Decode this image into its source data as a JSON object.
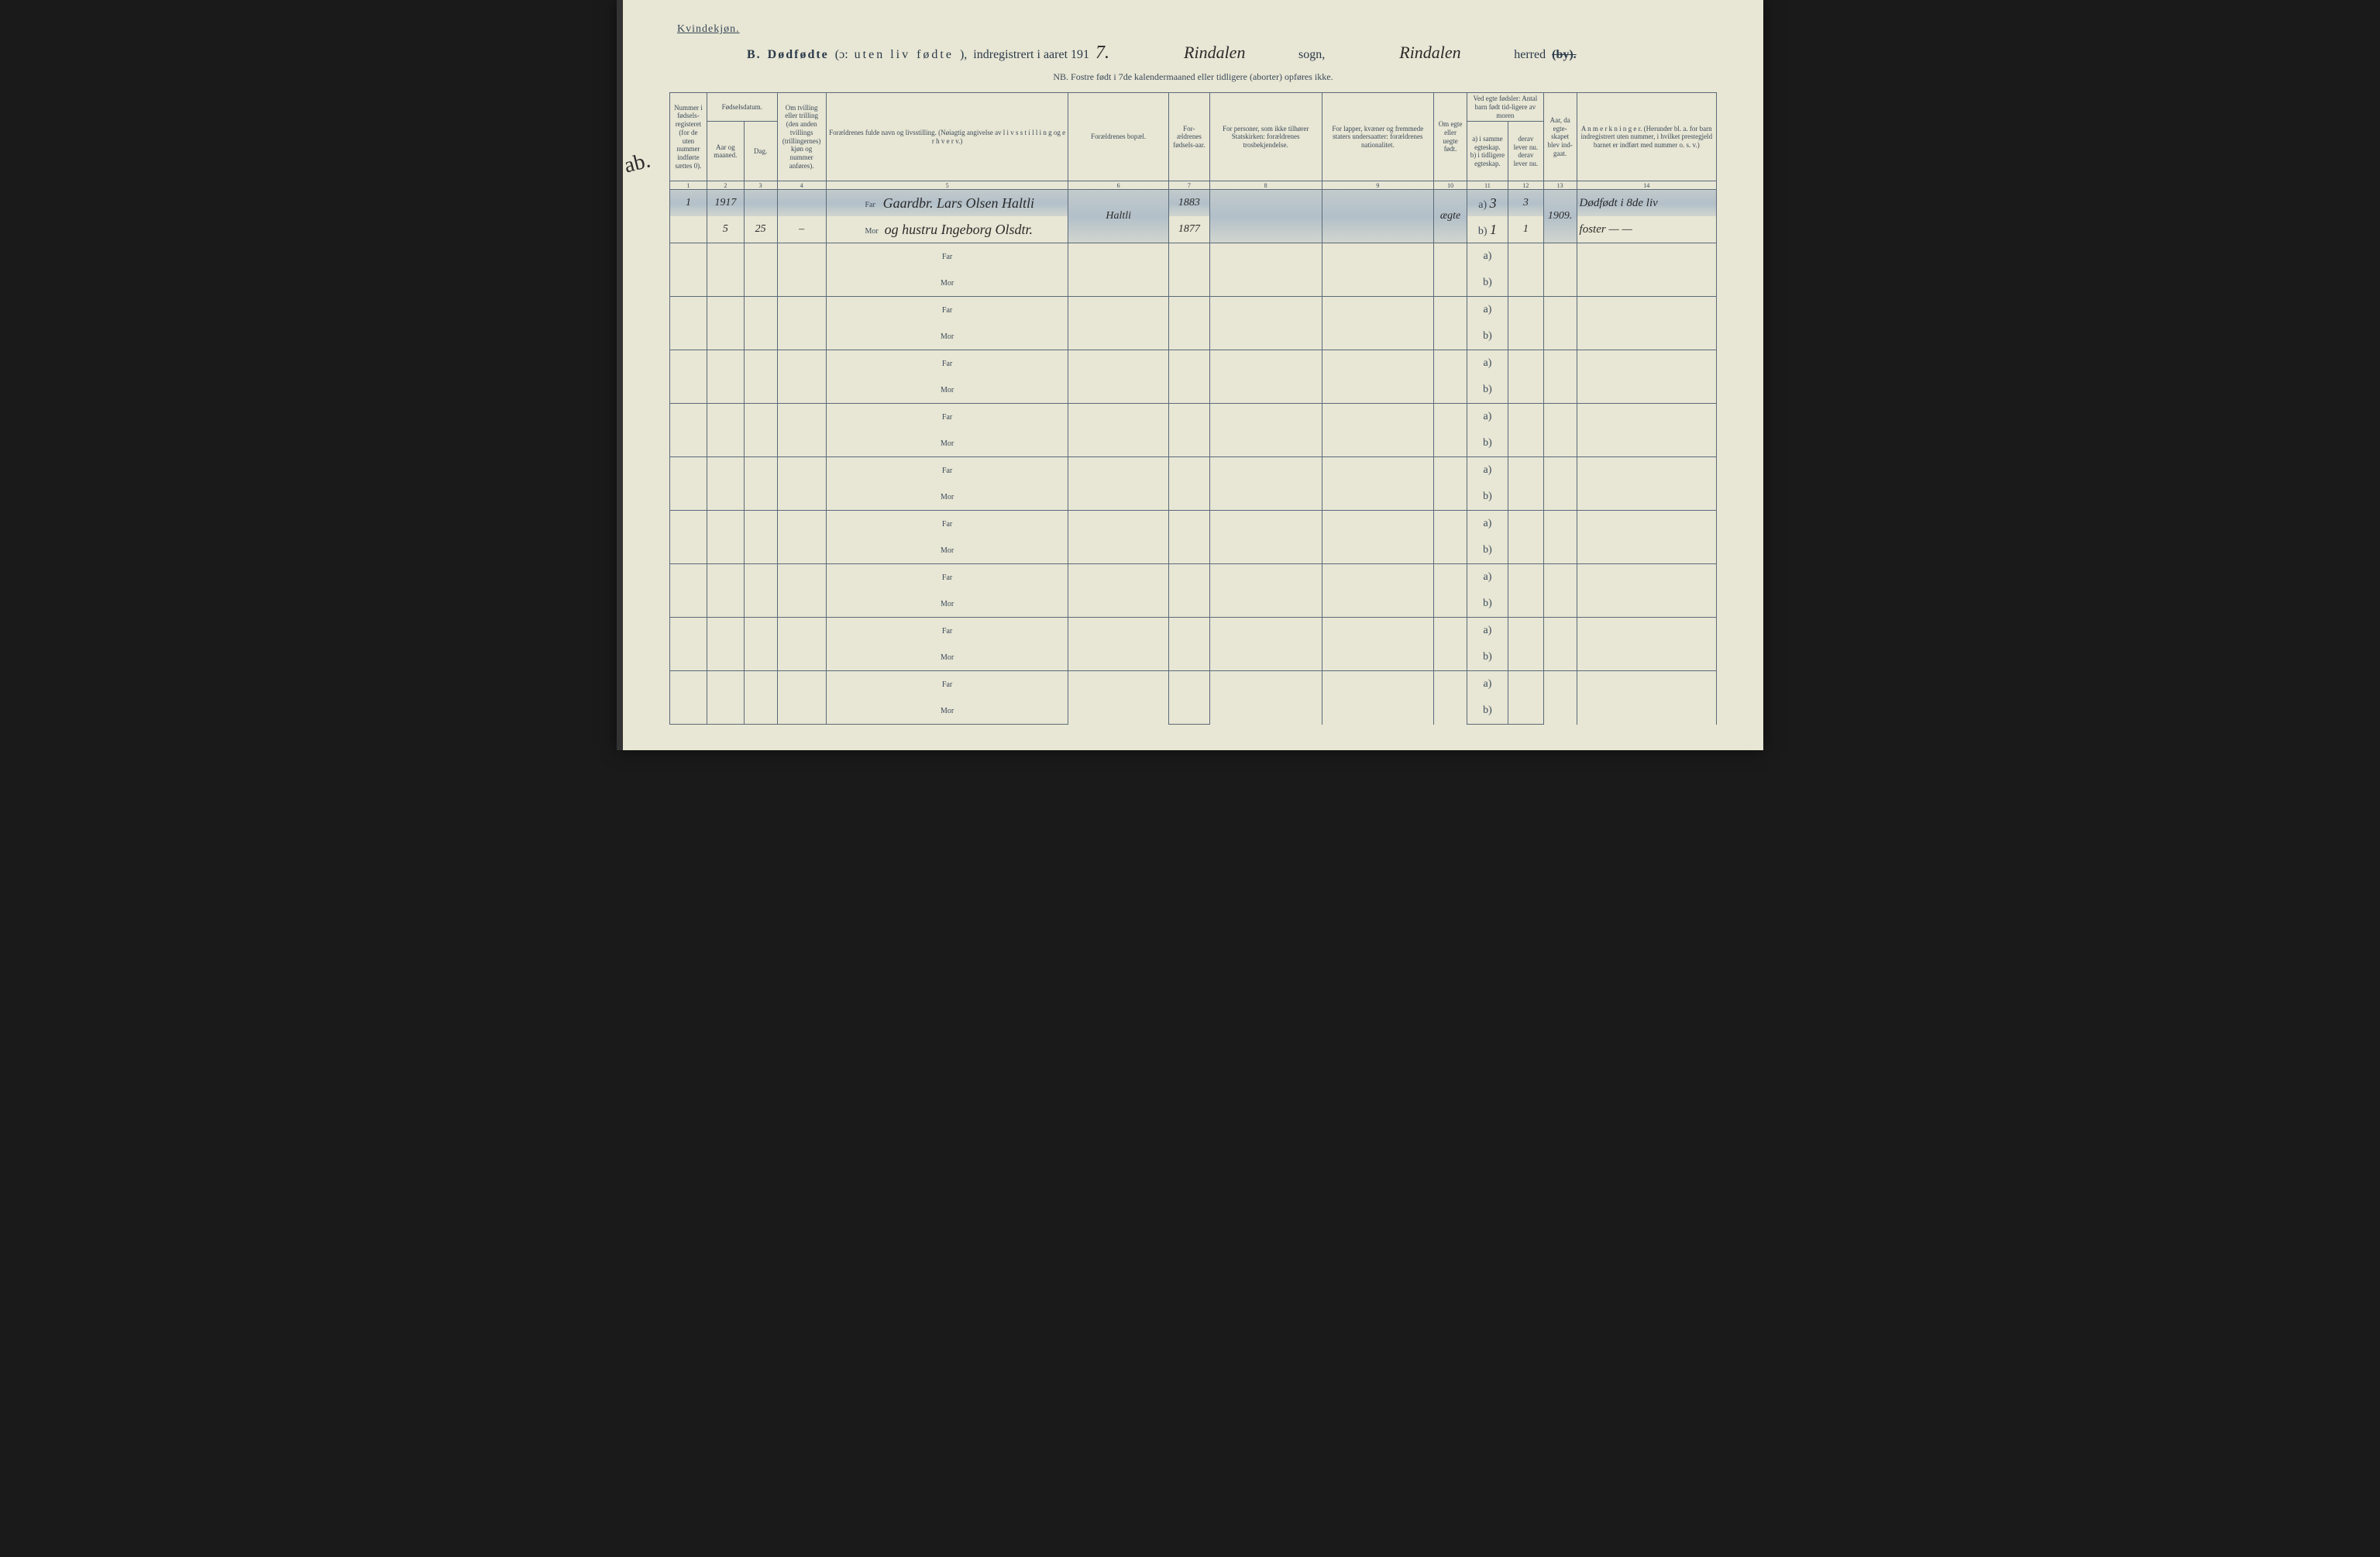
{
  "gender_label": "Kvindekjøn.",
  "title": {
    "prefix": "B.",
    "main": "Dødfødte",
    "paren": "(ɔ:",
    "spaced1": "uten liv",
    "spaced2": "fødte",
    "paren_close": "),",
    "registered": "indregistrert i aaret 191",
    "year_suffix": "7.",
    "sogn_hand": "Rindalen",
    "sogn_label": "sogn,",
    "herred_hand": "Rindalen",
    "herred_label": "herred",
    "herred_struck": "(by)."
  },
  "nb": "NB.  Fostre født i 7de kalendermaaned eller tidligere (aborter) opføres ikke.",
  "headers": {
    "c1": "Nummer i fødsels-registeret (for de uten nummer indførte sættes 0).",
    "c2_top": "Fødselsdatum.",
    "c2a": "Aar og maaned.",
    "c2b": "Dag.",
    "c4": "Om tvilling eller trilling (den anden tvillings (trillingernes) kjøn og nummer anføres).",
    "c5": "Forældrenes fulde navn og livsstilling. (Nøiagtig angivelse av l i v s s t i l l i n g  og e r h v e r v.)",
    "c6": "Forældrenes bopæl.",
    "c7": "For-ældrenes fødsels-aar.",
    "c8": "For personer, som ikke tilhører Statskirken: forældrenes trosbekjendelse.",
    "c9": "For lapper, kvæner og fremmede staters undersaatter: forældrenes nationalitet.",
    "c10": "Om egte eller uegte født.",
    "c11_top": "Ved egte fødsler: Antal barn født tid-ligere av moren",
    "c11a": "a) i samme egteskap.",
    "c11b": "b) i tidligere egteskap.",
    "c12a": "derav lever nu.",
    "c12b": "derav lever nu.",
    "c13": "Aar, da egte-skapet blev ind-gaat.",
    "c14": "A n m e r k n i n g e r. (Herunder bl. a. for barn indregistrert uten nummer, i hvilket prestegjeld barnet er indført med nummer o. s. v.)"
  },
  "colnums": [
    "1",
    "2",
    "3",
    "4",
    "5",
    "6",
    "7",
    "8",
    "9",
    "10",
    "11",
    "12",
    "13",
    "14"
  ],
  "margin_note": "ab.",
  "entry": {
    "num": "1",
    "year_month": "1917",
    "month": "5",
    "day": "25",
    "twin": "–",
    "far_label": "Far",
    "mor_label": "Mor",
    "far_name": "Gaardbr. Lars Olsen Haltli",
    "mor_name": "og hustru Ingeborg Olsdtr.",
    "residence": "Haltli",
    "far_birthyear": "1883",
    "mor_birthyear": "1877",
    "legitimacy": "ægte",
    "c11a": "3",
    "c12a": "3",
    "c11b": "1",
    "c12b": "1",
    "year_married": "1909.",
    "remark_top": "Dødfødt i 8de liv",
    "remark_bottom": "foster — —"
  },
  "blank_labels": {
    "far": "Far",
    "mor": "Mor",
    "a": "a)",
    "b": "b)"
  },
  "blank_row_count": 9
}
